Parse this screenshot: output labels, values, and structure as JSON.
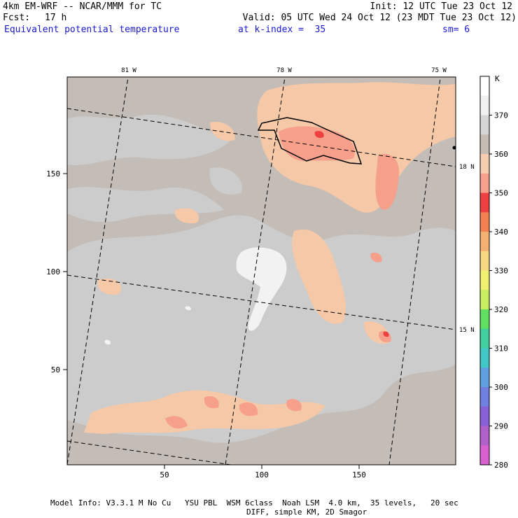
{
  "header": {
    "model": "4km EM-WRF -- NCAR/MMM for TC",
    "init": "Init: 12 UTC Tue 23 Oct 12",
    "fcst_label": "Fcst:",
    "fcst_value": "17 h",
    "valid": "Valid: 05 UTC Wed 24 Oct 12 (23 MDT Tue 23 Oct 12)",
    "field": "Equivalent potential temperature",
    "level": "at k-index =  35",
    "smoothing": "sm= 6"
  },
  "map": {
    "x_ticks": [
      "50",
      "100",
      "150"
    ],
    "y_ticks": [
      "50",
      "100",
      "150"
    ],
    "lon_labels": [
      "81 W",
      "78 W",
      "75 W"
    ],
    "lat_labels": [
      "18 N",
      "15 N"
    ],
    "colors": {
      "background": "#c4bcb6",
      "grey_360": "#cccccc",
      "tan_350": "#f5c8a8",
      "salmon_345": "#f6a08c",
      "red_340": "#ee4040",
      "white_370": "#f2f2f2",
      "outline": "#000000"
    }
  },
  "legend": {
    "unit": "K",
    "levels": [
      "370",
      "360",
      "350",
      "340",
      "330",
      "320",
      "310",
      "300",
      "290",
      "280"
    ],
    "swatches": [
      "#ffffff",
      "#f0f0f0",
      "#d6d6d6",
      "#c6bcb4",
      "#f6cdae",
      "#f6a08c",
      "#ee4040",
      "#f28050",
      "#f4b070",
      "#f6d880",
      "#f0f070",
      "#c8ee60",
      "#60e060",
      "#40d0a0",
      "#40c8c8",
      "#60a0e0",
      "#7080e0",
      "#8860d8",
      "#b060c8",
      "#d860d0"
    ]
  },
  "footer": {
    "line1": "Model Info: V3.3.1 M No Cu   YSU PBL  WSM 6class  Noah LSM  4.0 km,  35 levels,   20 sec",
    "line2": "DIFF, simple KM, 2D Smagor"
  }
}
